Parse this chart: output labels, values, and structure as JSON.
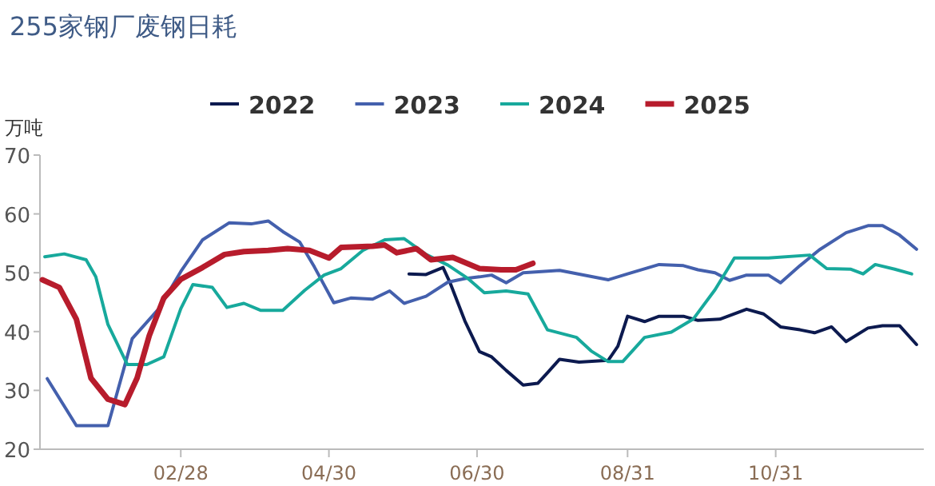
{
  "chart_data": {
    "type": "line",
    "title": "255家钢厂废钢日耗",
    "ylabel": "万吨",
    "legend": "top",
    "line_style": "solid",
    "xlim": [
      "--01-01",
      "--12-31"
    ],
    "ylim": [
      20,
      70
    ],
    "yticks": [
      20,
      30,
      40,
      50,
      60,
      70
    ],
    "xticks": [
      {
        "value": "--02-28",
        "label": "02/28"
      },
      {
        "value": "--04-30",
        "label": "04/30"
      },
      {
        "value": "--06-30",
        "label": "06/30"
      },
      {
        "value": "--08-31",
        "label": "08/31"
      },
      {
        "value": "--10-31",
        "label": "10/31"
      }
    ],
    "series": [
      {
        "name": "2022",
        "color": "#0c1a4f",
        "x": [
          "--06-02",
          "--06-09",
          "--06-16",
          "--06-19",
          "--06-25",
          "--07-01",
          "--07-06",
          "--07-12",
          "--07-19",
          "--07-25",
          "--07-29",
          "--08-03",
          "--08-11",
          "--08-23",
          "--08-27",
          "--08-31",
          "--09-07",
          "--09-13",
          "--09-23",
          "--09-29",
          "--10-08",
          "--10-19",
          "--10-26",
          "--11-02",
          "--11-10",
          "--11-16",
          "--11-23",
          "--11-29",
          "--12-08",
          "--12-14",
          "--12-21",
          "--12-28"
        ],
        "values": [
          49.8,
          49.7,
          50.9,
          48.2,
          41.8,
          36.6,
          35.7,
          33.4,
          30.9,
          31.2,
          33,
          35.3,
          34.8,
          35.1,
          37.5,
          42.6,
          41.7,
          42.6,
          42.6,
          41.9,
          42.1,
          43.8,
          43,
          40.8,
          40.3,
          39.8,
          40.8,
          38.3,
          40.6,
          41,
          41,
          37.8
        ]
      },
      {
        "name": "2023",
        "color": "#4460ad",
        "x": [
          "--01-04",
          "--01-16",
          "--01-29",
          "--02-08",
          "--02-19",
          "--02-28",
          "--03-09",
          "--03-20",
          "--03-29",
          "--04-05",
          "--04-11",
          "--04-18",
          "--04-24",
          "--05-02",
          "--05-09",
          "--05-18",
          "--05-25",
          "--05-31",
          "--06-09",
          "--06-18",
          "--06-25",
          "--07-01",
          "--07-06",
          "--07-12",
          "--07-19",
          "--08-03",
          "--08-23",
          "--08-31",
          "--09-13",
          "--09-23",
          "--09-29",
          "--10-06",
          "--10-12",
          "--10-19",
          "--10-28",
          "--11-02",
          "--11-10",
          "--11-18",
          "--11-29",
          "--12-08",
          "--12-14",
          "--12-21",
          "--12-28"
        ],
        "values": [
          32,
          24,
          24,
          38.8,
          43.9,
          50.2,
          55.6,
          58.5,
          58.3,
          58.8,
          57,
          55.2,
          51,
          44.9,
          45.7,
          45.5,
          46.9,
          44.8,
          46,
          48.4,
          49,
          49.3,
          49.6,
          48.3,
          50,
          50.4,
          48.8,
          49.8,
          51.4,
          51.2,
          50.5,
          50,
          48.7,
          49.6,
          49.6,
          48.3,
          51.2,
          53.9,
          56.8,
          58,
          58,
          56.4,
          54
        ]
      },
      {
        "name": "2024",
        "color": "#17a99c",
        "x": [
          "--01-03",
          "--01-11",
          "--01-20",
          "--01-24",
          "--01-29",
          "--02-06",
          "--02-14",
          "--02-21",
          "--02-28",
          "--03-05",
          "--03-13",
          "--03-19",
          "--03-26",
          "--04-02",
          "--04-11",
          "--04-20",
          "--04-28",
          "--05-05",
          "--05-14",
          "--05-23",
          "--05-31",
          "--06-09",
          "--06-18",
          "--06-26",
          "--07-03",
          "--07-12",
          "--07-21",
          "--07-29",
          "--08-10",
          "--08-16",
          "--08-23",
          "--08-29",
          "--09-07",
          "--09-18",
          "--09-27",
          "--10-06",
          "--10-14",
          "--10-28",
          "--11-14",
          "--11-21",
          "--12-01",
          "--12-06",
          "--12-11",
          "--12-19",
          "--12-26"
        ],
        "values": [
          52.7,
          53.2,
          52.2,
          49.3,
          41.2,
          34.4,
          34.4,
          35.7,
          43.9,
          48,
          47.5,
          44.1,
          44.8,
          43.6,
          43.6,
          47,
          49.6,
          50.7,
          53.8,
          55.6,
          55.8,
          53.1,
          51.3,
          49.1,
          46.6,
          46.9,
          46.4,
          40.3,
          39,
          36.7,
          34.9,
          34.9,
          39,
          39.9,
          42.1,
          47.1,
          52.5,
          52.5,
          53,
          50.7,
          50.6,
          49.8,
          51.4,
          50.6,
          49.8
        ]
      },
      {
        "name": "2025",
        "color": "#b71c2c",
        "x": [
          "--01-02",
          "--01-09",
          "--01-16",
          "--01-22",
          "--01-29",
          "--02-05",
          "--02-10",
          "--02-15",
          "--02-21",
          "--02-28",
          "--03-09",
          "--03-18",
          "--03-26",
          "--04-05",
          "--04-13",
          "--04-22",
          "--04-30",
          "--05-05",
          "--05-18",
          "--05-23",
          "--05-28",
          "--06-05",
          "--06-11",
          "--06-20",
          "--07-01",
          "--07-10",
          "--07-16",
          "--07-23"
        ],
        "values": [
          48.8,
          47.5,
          42.1,
          32.1,
          28.5,
          27.6,
          32.1,
          39.3,
          45.7,
          48.9,
          50.9,
          53.1,
          53.6,
          53.8,
          54.1,
          53.8,
          52.5,
          54.3,
          54.5,
          54.7,
          53.4,
          54.1,
          52.2,
          52.6,
          50.7,
          50.5,
          50.5,
          51.6
        ]
      }
    ]
  }
}
